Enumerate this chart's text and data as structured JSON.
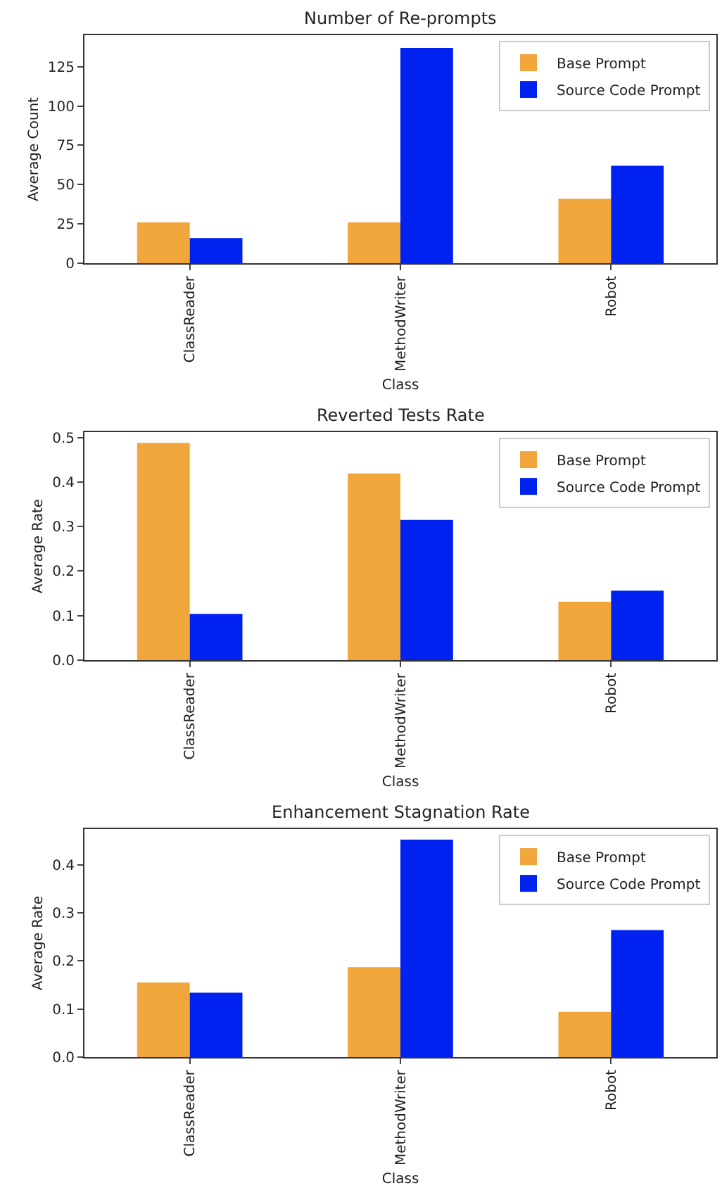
{
  "chart_data": [
    {
      "type": "bar",
      "title": "Number of Re-prompts",
      "xlabel": "Class",
      "ylabel": "Average Count",
      "categories": [
        "ClassReader",
        "MethodWriter",
        "Robot"
      ],
      "series": [
        {
          "name": "Base Prompt",
          "color": "#f0a63b",
          "values": [
            26,
            26,
            41
          ]
        },
        {
          "name": "Source Code Prompt",
          "color": "#0022f0",
          "values": [
            16,
            137,
            62
          ]
        }
      ],
      "ylim": [
        0,
        145
      ],
      "yticks": [
        0,
        25,
        50,
        75,
        100,
        125
      ],
      "legend": "top right"
    },
    {
      "type": "bar",
      "title": "Reverted Tests Rate",
      "xlabel": "Class",
      "ylabel": "Average Rate",
      "categories": [
        "ClassReader",
        "MethodWriter",
        "Robot"
      ],
      "series": [
        {
          "name": "Base Prompt",
          "color": "#f0a63b",
          "values": [
            0.488,
            0.419,
            0.131
          ]
        },
        {
          "name": "Source Code Prompt",
          "color": "#0022f0",
          "values": [
            0.104,
            0.315,
            0.156
          ]
        }
      ],
      "ylim": [
        0,
        0.512
      ],
      "yticks": [
        {
          "value": 0,
          "label": "0.0"
        },
        0.1,
        0.2,
        0.3,
        0.4,
        0.5
      ],
      "legend": "top right"
    },
    {
      "type": "bar",
      "title": "Enhancement Stagnation Rate",
      "xlabel": "Class",
      "ylabel": "Average Rate",
      "categories": [
        "ClassReader",
        "MethodWriter",
        "Robot"
      ],
      "series": [
        {
          "name": "Base Prompt",
          "color": "#f0a63b",
          "values": [
            0.155,
            0.187,
            0.094
          ]
        },
        {
          "name": "Source Code Prompt",
          "color": "#0022f0",
          "values": [
            0.134,
            0.452,
            0.264
          ]
        }
      ],
      "ylim": [
        0,
        0.474
      ],
      "yticks": [
        {
          "value": 0,
          "label": "0.0"
        },
        0.1,
        0.2,
        0.3,
        0.4
      ],
      "legend": "top right"
    }
  ]
}
